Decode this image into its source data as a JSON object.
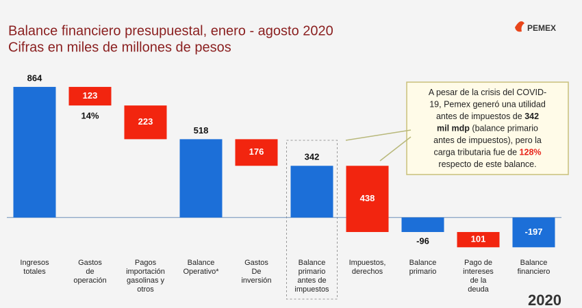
{
  "header": {
    "title": "Balance financiero presupuestal, enero - agosto 2020",
    "subtitle": "Cifras en miles de millones de pesos",
    "logo": "PEMEX",
    "year": "2020"
  },
  "chart_data": {
    "type": "waterfall",
    "categories": [
      [
        "Ingresos",
        "totales"
      ],
      [
        "Gastos",
        "de",
        "operación"
      ],
      [
        "Pagos",
        "importación",
        "gasolinas y",
        "otros"
      ],
      [
        "Balance",
        "Operativo*"
      ],
      [
        "Gastos",
        "De",
        "inversión"
      ],
      [
        "Balance",
        "primario",
        "antes de",
        "impuestos"
      ],
      [
        "Impuestos,",
        "derechos"
      ],
      [
        "Balance",
        "primario"
      ],
      [
        "Pago de",
        "intereses",
        "de la",
        "deuda"
      ],
      [
        "Balance",
        "financiero"
      ]
    ],
    "values": [
      864,
      123,
      223,
      518,
      176,
      342,
      438,
      -96,
      101,
      -197
    ],
    "measure": [
      "total",
      "decrease",
      "decrease",
      "total",
      "decrease",
      "total",
      "decrease",
      "total",
      "decrease",
      "total"
    ],
    "colors": [
      "#1c6fd8",
      "#f2250f",
      "#f2250f",
      "#1c6fd8",
      "#f2250f",
      "#1c6fd8",
      "#f2250f",
      "#1c6fd8",
      "#f2250f",
      "#1c6fd8"
    ],
    "category_label_colors": [
      "#222222",
      "#222222",
      "#222222",
      "#222222",
      "#222222",
      "#222222",
      "#e8451a",
      "#222222",
      "#e8451a",
      "#222222"
    ],
    "ylim": [
      -250,
      900
    ],
    "highlight": 5,
    "bar_notes": [
      {
        "index": 1,
        "text": "14%"
      }
    ],
    "annotation": [
      [
        {
          "text": "A pesar de la crisis del COVID-",
          "style": "normal"
        }
      ],
      [
        {
          "text": "19, Pemex generó una utilidad",
          "style": "normal"
        }
      ],
      [
        {
          "text": "antes de impuestos de ",
          "style": "normal"
        },
        {
          "text": "342",
          "style": "bold"
        }
      ],
      [
        {
          "text": "mil mdp",
          "style": "bold"
        },
        {
          "text": " (balance primario",
          "style": "normal"
        }
      ],
      [
        {
          "text": "antes de impuestos), pero la",
          "style": "normal"
        }
      ],
      [
        {
          "text": "carga tributaria fue de ",
          "style": "normal"
        },
        {
          "text": "128%",
          "style": "red"
        }
      ],
      [
        {
          "text": "respecto de este balance.",
          "style": "normal"
        }
      ]
    ]
  }
}
